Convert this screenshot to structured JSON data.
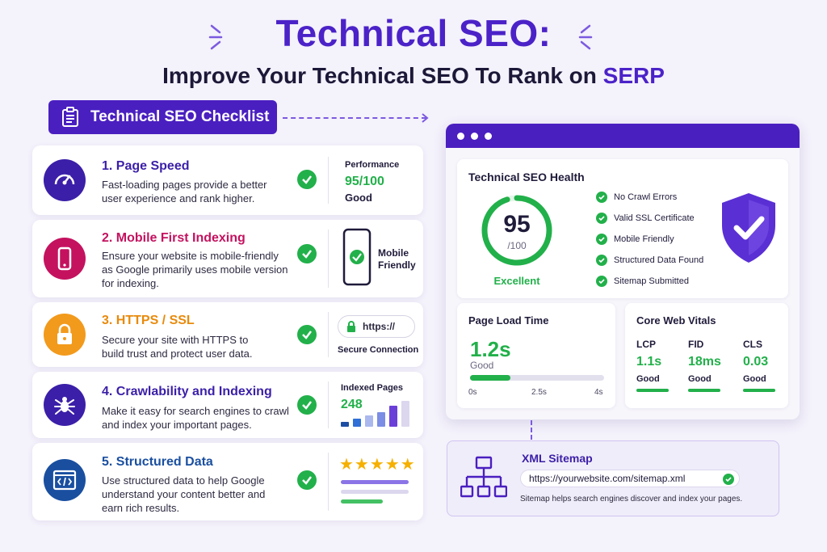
{
  "header": {
    "title": "Technical SEO:",
    "subtitle_part1": "Improve Your Technical SEO To Rank on ",
    "subtitle_highlight": "SERP"
  },
  "checklist_badge": {
    "label": "Technical SEO Checklist"
  },
  "items": [
    {
      "title": "1. Page Speed",
      "desc": "Fast-loading pages provide a better user experience and rank higher.",
      "color": "#3b1fa8",
      "icon": "speedometer-icon",
      "side": {
        "label": "Performance",
        "value": "95/100",
        "status": "Good"
      }
    },
    {
      "title": "2. Mobile First Indexing",
      "desc": "Ensure your website is mobile-friendly as Google primarily uses mobile version for indexing.",
      "color": "#c4125f",
      "icon": "phone-icon",
      "side": {
        "label": "Mobile Friendly"
      }
    },
    {
      "title": "3. HTTPS / SSL",
      "desc": "Secure your site with HTTPS to build trust and protect user data.",
      "color": "#e88a0c",
      "icon": "lock-icon",
      "side": {
        "url": "https://",
        "label": "Secure Connection"
      }
    },
    {
      "title": "4. Crawlability and Indexing",
      "desc": "Make it easy for search engines to crawl and index your important pages.",
      "color": "#3b1fa8",
      "icon": "spider-icon",
      "side": {
        "label": "Indexed Pages",
        "value": "248"
      }
    },
    {
      "title": "5. Structured Data",
      "desc": "Use structured data to help Google understand your content better and earn rich results.",
      "color": "#1a4fa0",
      "icon": "code-window-icon",
      "side": {
        "stars": "★★★★★"
      }
    }
  ],
  "dashboard": {
    "health": {
      "title": "Technical SEO Health",
      "score": "95",
      "score_max": "/100",
      "score_fraction": 0.95,
      "score_label": "Excellent",
      "checks": [
        "No Crawl Errors",
        "Valid SSL Certificate",
        "Mobile Friendly",
        "Structured Data Found",
        "Sitemap Submitted"
      ]
    },
    "load_time": {
      "title": "Page Load Time",
      "value": "1.2s",
      "status": "Good",
      "progress": 0.3,
      "scale": [
        "0s",
        "2.5s",
        "4s"
      ]
    },
    "vitals": {
      "title": "Core Web Vitals",
      "metrics": [
        {
          "name": "LCP",
          "value": "1.1s",
          "status": "Good"
        },
        {
          "name": "FID",
          "value": "18ms",
          "status": "Good"
        },
        {
          "name": "CLS",
          "value": "0.03",
          "status": "Good"
        }
      ]
    }
  },
  "sitemap": {
    "title": "XML Sitemap",
    "url": "https://yourwebsite.com/sitemap.xml",
    "note": "Sitemap helps search engines discover and index your pages."
  },
  "colors": {
    "brand": "#4a1fc0",
    "success": "#22b04a"
  }
}
